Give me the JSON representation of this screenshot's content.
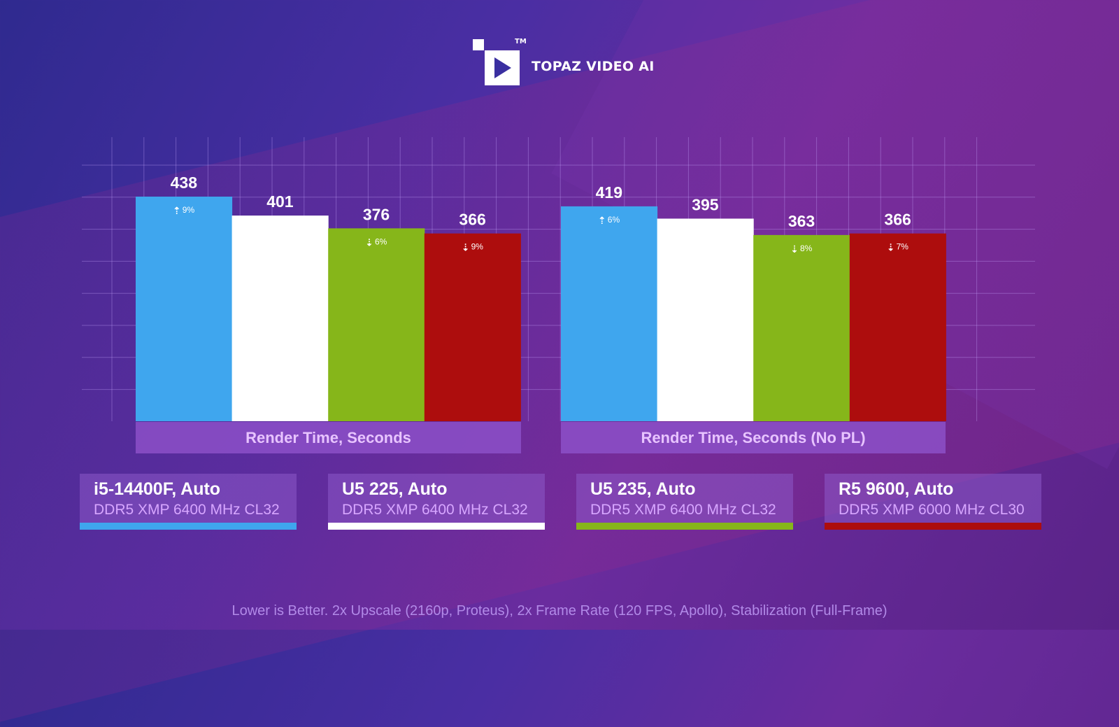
{
  "brand": {
    "name": "TOPAZ VIDEO AI",
    "tm": "TM"
  },
  "chart_data": {
    "type": "bar",
    "groups": [
      "Render Time, Seconds",
      "Render Time, Seconds (No PL)"
    ],
    "series": [
      {
        "name": "i5-14400F, Auto",
        "spec": "DDR5 XMP 6400 MHz CL32",
        "color": "#3fa6ee",
        "values": [
          438,
          419
        ],
        "deltas": [
          {
            "dir": "up",
            "text": "9%"
          },
          {
            "dir": "up",
            "text": "6%"
          }
        ]
      },
      {
        "name": "U5 225, Auto",
        "spec": "DDR5 XMP 6400 MHz CL32",
        "color": "#ffffff",
        "values": [
          401,
          395
        ],
        "deltas": [
          null,
          null
        ]
      },
      {
        "name": "U5 235, Auto",
        "spec": "DDR5 XMP 6400 MHz CL32",
        "color": "#86b61a",
        "values": [
          376,
          363
        ],
        "deltas": [
          {
            "dir": "down",
            "text": "6%"
          },
          {
            "dir": "down",
            "text": "8%"
          }
        ]
      },
      {
        "name": "R5 9600, Auto",
        "spec": "DDR5 XMP 6000 MHz CL30",
        "color": "#ad0d0d",
        "values": [
          366,
          366
        ],
        "deltas": [
          {
            "dir": "down",
            "text": "9%"
          },
          {
            "dir": "down",
            "text": "7%"
          }
        ]
      }
    ],
    "grid": true
  },
  "footnote": "Lower is Better. 2x Upscale (2160p, Proteus), 2x Frame Rate (120 FPS, Apollo), Stabilization (Full-Frame)"
}
